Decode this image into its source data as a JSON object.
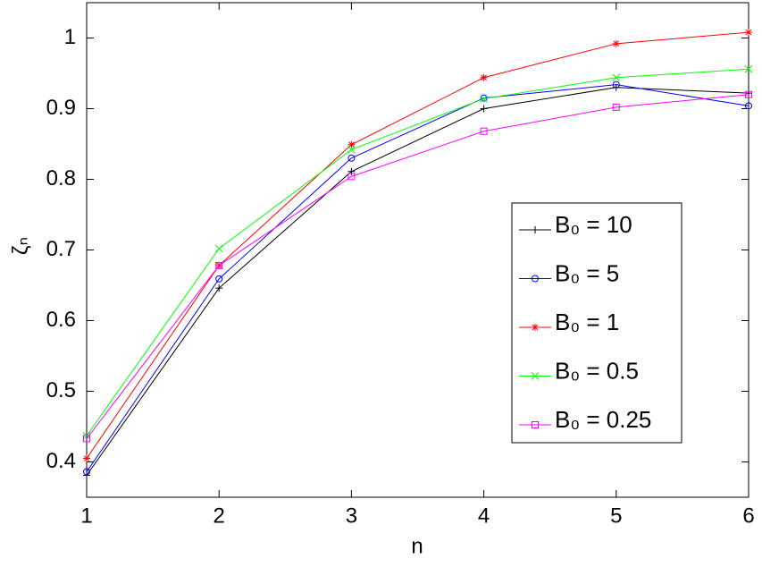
{
  "chart_data": {
    "type": "line",
    "xlabel": "n",
    "ylabel": "ζₙ",
    "x": [
      1,
      2,
      3,
      4,
      5,
      6
    ],
    "xlim": [
      1,
      6
    ],
    "xticks": [
      1,
      2,
      3,
      4,
      5,
      6
    ],
    "ylim": [
      0.35,
      1.05
    ],
    "yticks": [
      0.4,
      0.5,
      0.6,
      0.7,
      0.8,
      0.9,
      1
    ],
    "grid": false,
    "legend": "east",
    "series": [
      {
        "name": "B₀ = 10",
        "color": "#000000",
        "marker": "plus",
        "values": [
          0.381,
          0.646,
          0.811,
          0.9,
          0.93,
          0.922
        ]
      },
      {
        "name": "B₀ = 5",
        "color": "#0000ff",
        "marker": "circle",
        "values": [
          0.386,
          0.659,
          0.83,
          0.915,
          0.934,
          0.904
        ]
      },
      {
        "name": "B₀ = 1",
        "color": "#ff0000",
        "marker": "star",
        "values": [
          0.405,
          0.678,
          0.849,
          0.944,
          0.992,
          1.008
        ]
      },
      {
        "name": "B₀ = 0.5",
        "color": "#00ff00",
        "marker": "cross",
        "values": [
          0.437,
          0.702,
          0.842,
          0.914,
          0.944,
          0.956
        ]
      },
      {
        "name": "B₀ = 0.25",
        "color": "#ff00ff",
        "marker": "square",
        "values": [
          0.433,
          0.678,
          0.804,
          0.868,
          0.902,
          0.92
        ]
      }
    ]
  }
}
